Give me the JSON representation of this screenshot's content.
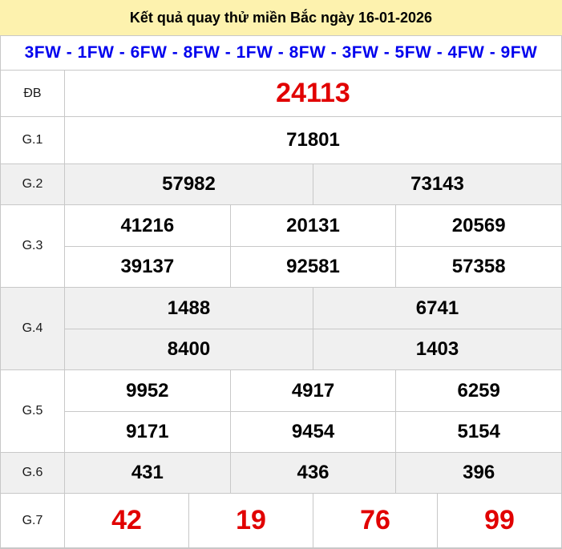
{
  "header": {
    "title": "Kết quả quay thử miền Bắc ngày 16-01-2026",
    "fw_line": "3FW - 1FW - 6FW - 8FW - 1FW - 8FW - 3FW - 5FW - 4FW - 9FW"
  },
  "colors": {
    "header_bg": "#fdf2ae",
    "stripe_bg": "#f0f0f0",
    "border": "#c8c8c8",
    "special_red": "#e10000",
    "fw_blue": "#0202ee"
  },
  "results": {
    "rows": [
      {
        "label": "ĐB",
        "style": "special",
        "lines": [
          [
            "24113"
          ]
        ]
      },
      {
        "label": "G.1",
        "style": "normal",
        "lines": [
          [
            "71801"
          ]
        ]
      },
      {
        "label": "G.2",
        "style": "normal",
        "lines": [
          [
            "57982",
            "73143"
          ]
        ]
      },
      {
        "label": "G.3",
        "style": "normal",
        "lines": [
          [
            "41216",
            "20131",
            "20569"
          ],
          [
            "39137",
            "92581",
            "57358"
          ]
        ]
      },
      {
        "label": "G.4",
        "style": "normal",
        "lines": [
          [
            "1488",
            "6741"
          ],
          [
            "8400",
            "1403"
          ]
        ]
      },
      {
        "label": "G.5",
        "style": "normal",
        "lines": [
          [
            "9952",
            "4917",
            "6259"
          ],
          [
            "9171",
            "9454",
            "5154"
          ]
        ]
      },
      {
        "label": "G.6",
        "style": "normal",
        "lines": [
          [
            "431",
            "436",
            "396"
          ]
        ]
      },
      {
        "label": "G.7",
        "style": "special",
        "lines": [
          [
            "42",
            "19",
            "76",
            "99"
          ]
        ]
      }
    ]
  }
}
